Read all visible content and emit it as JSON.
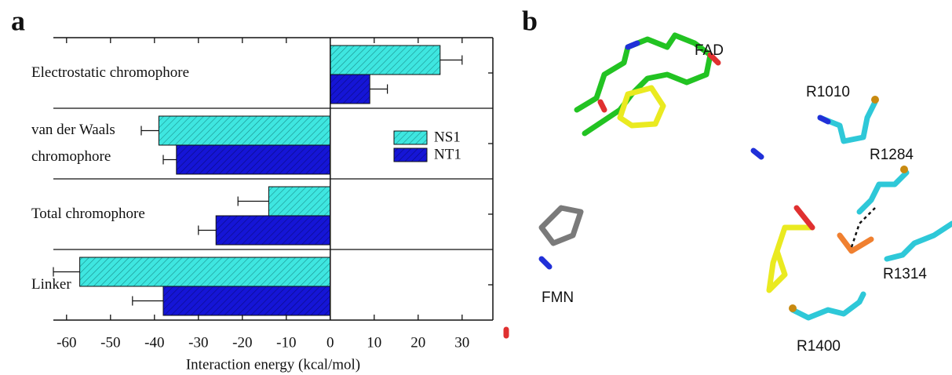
{
  "panel_labels": [
    "a",
    "b"
  ],
  "chart_data": {
    "type": "bar",
    "orientation": "horizontal",
    "xlabel": "Interaction energy (kcal/mol)",
    "categories": [
      "Electrostatic chromophore",
      "van der Waals\nchromophore",
      "Total chromophore",
      "Linker"
    ],
    "series": [
      {
        "name": "NS1",
        "color": "#3ee6e0",
        "values": [
          25,
          -39,
          -14,
          -57
        ],
        "errors": [
          5,
          4,
          7,
          6
        ]
      },
      {
        "name": "NT1",
        "color": "#1515d6",
        "values": [
          9,
          -35,
          -26,
          -38
        ],
        "errors": [
          4,
          3,
          4,
          7
        ]
      }
    ],
    "xlim": [
      -63,
      37
    ],
    "xticks": [
      -60,
      -50,
      -40,
      -30,
      -20,
      -10,
      0,
      10,
      20,
      30
    ],
    "legend": "upper right"
  },
  "structure": {
    "labels": [
      "FAD",
      "R1010",
      "R1284",
      "R1314",
      "R1400",
      "FMN"
    ]
  }
}
